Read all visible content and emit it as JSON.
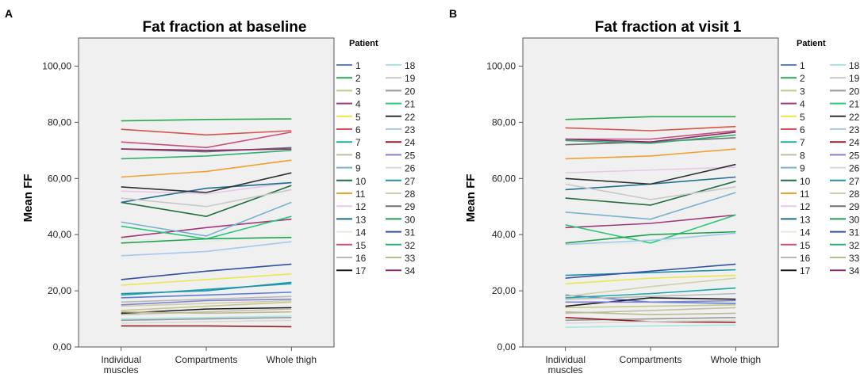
{
  "chart_data": [
    {
      "panel_label": "A",
      "type": "line",
      "title": "Fat fraction at baseline",
      "xlabel": "",
      "ylabel": "Mean FF",
      "categories": [
        "Individual muscles",
        "Compartments",
        "Whole thigh"
      ],
      "yticks": [
        "0,00",
        "20,00",
        "40,00",
        "60,00",
        "80,00",
        "100,00"
      ],
      "ylim": [
        0,
        110
      ],
      "legend_title": "Patient",
      "series": [
        {
          "name": "1",
          "color": "#5b7fd6",
          "values": [
            17.5,
            18.5,
            19.5
          ]
        },
        {
          "name": "2",
          "color": "#2aa84a",
          "values": [
            80.5,
            81.0,
            81.2
          ]
        },
        {
          "name": "3",
          "color": "#c7c78a",
          "values": [
            13.0,
            14.5,
            16.0
          ]
        },
        {
          "name": "4",
          "color": "#a0387a",
          "values": [
            39.0,
            42.5,
            45.5
          ]
        },
        {
          "name": "5",
          "color": "#e8e84a",
          "values": [
            22.0,
            24.0,
            26.0
          ]
        },
        {
          "name": "6",
          "color": "#d9534f",
          "values": [
            77.5,
            75.5,
            77.0
          ]
        },
        {
          "name": "7",
          "color": "#20a8a8",
          "values": [
            18.5,
            20.5,
            22.5
          ]
        },
        {
          "name": "8",
          "color": "#bfbfa8",
          "values": [
            11.5,
            12.5,
            13.5
          ]
        },
        {
          "name": "9",
          "color": "#78b0d0",
          "values": [
            44.5,
            39.5,
            51.5
          ]
        },
        {
          "name": "10",
          "color": "#1e6e40",
          "values": [
            51.5,
            46.5,
            57.5
          ]
        },
        {
          "name": "11",
          "color": "#f0a030",
          "values": [
            60.5,
            62.5,
            66.5
          ]
        },
        {
          "name": "12",
          "color": "#e8c8e8",
          "values": [
            55.5,
            54.5,
            58.5
          ]
        },
        {
          "name": "13",
          "color": "#1f6f8f",
          "values": [
            51.5,
            56.5,
            58.5
          ]
        },
        {
          "name": "14",
          "color": "#dff0df",
          "values": [
            38.5,
            37.5,
            40.0
          ]
        },
        {
          "name": "15",
          "color": "#c8507a",
          "values": [
            73.0,
            71.0,
            76.5
          ]
        },
        {
          "name": "16",
          "color": "#b8b8b8",
          "values": [
            16.0,
            17.0,
            18.0
          ]
        },
        {
          "name": "17",
          "color": "#1a1a1a",
          "values": [
            12.0,
            13.5,
            14.0
          ]
        },
        {
          "name": "18",
          "color": "#a8e8e0",
          "values": [
            10.0,
            10.5,
            11.0
          ]
        },
        {
          "name": "19",
          "color": "#c8c8c8",
          "values": [
            53.0,
            50.0,
            56.0
          ]
        },
        {
          "name": "20",
          "color": "#989898",
          "values": [
            9.5,
            10.0,
            10.5
          ]
        },
        {
          "name": "21",
          "color": "#2ac87a",
          "values": [
            43.0,
            38.5,
            46.5
          ]
        },
        {
          "name": "22",
          "color": "#303030",
          "values": [
            57.0,
            55.0,
            62.0
          ]
        },
        {
          "name": "23",
          "color": "#a8c8f0",
          "values": [
            32.5,
            34.0,
            37.5
          ]
        },
        {
          "name": "24",
          "color": "#902020",
          "values": [
            7.5,
            7.5,
            7.2
          ]
        },
        {
          "name": "25",
          "color": "#8080d0",
          "values": [
            15.0,
            16.5,
            17.0
          ]
        },
        {
          "name": "26",
          "color": "#d8d8d8",
          "values": [
            8.5,
            9.0,
            9.5
          ]
        },
        {
          "name": "27",
          "color": "#2090b0",
          "values": [
            19.0,
            20.0,
            23.0
          ]
        },
        {
          "name": "28",
          "color": "#d0d0a8",
          "values": [
            14.5,
            15.5,
            16.5
          ]
        },
        {
          "name": "29",
          "color": "#707070",
          "values": [
            70.5,
            69.5,
            71.0
          ]
        },
        {
          "name": "30",
          "color": "#20a050",
          "values": [
            37.0,
            38.5,
            39.0
          ]
        },
        {
          "name": "31",
          "color": "#3050a0",
          "values": [
            24.0,
            27.0,
            29.5
          ]
        },
        {
          "name": "32",
          "color": "#30b070",
          "values": [
            67.0,
            68.0,
            70.0
          ]
        },
        {
          "name": "33",
          "color": "#c0b890",
          "values": [
            12.5,
            12.0,
            12.5
          ]
        },
        {
          "name": "34",
          "color": "#8a2a6a",
          "values": [
            70.5,
            70.0,
            70.5
          ]
        }
      ]
    },
    {
      "panel_label": "B",
      "type": "line",
      "title": "Fat fraction at visit 1",
      "xlabel": "",
      "ylabel": "Mean FF",
      "categories": [
        "Individual muscles",
        "Compartments",
        "Whole thigh"
      ],
      "yticks": [
        "0,00",
        "20,00",
        "40,00",
        "60,00",
        "80,00",
        "100,00"
      ],
      "ylim": [
        0,
        110
      ],
      "legend_title": "Patient",
      "series": [
        {
          "name": "1",
          "color": "#5b7fd6",
          "values": [
            18.5,
            16.0,
            15.5
          ]
        },
        {
          "name": "2",
          "color": "#2aa84a",
          "values": [
            81.0,
            82.0,
            82.0
          ]
        },
        {
          "name": "3",
          "color": "#c7c78a",
          "values": [
            14.0,
            14.5,
            15.0
          ]
        },
        {
          "name": "4",
          "color": "#a0387a",
          "values": [
            42.5,
            44.0,
            47.0
          ]
        },
        {
          "name": "5",
          "color": "#e8e84a",
          "values": [
            22.5,
            24.5,
            25.5
          ]
        },
        {
          "name": "6",
          "color": "#d9534f",
          "values": [
            78.0,
            77.0,
            78.5
          ]
        },
        {
          "name": "7",
          "color": "#20a8a8",
          "values": [
            17.5,
            19.0,
            21.0
          ]
        },
        {
          "name": "8",
          "color": "#bfbfa8",
          "values": [
            12.0,
            13.0,
            14.0
          ]
        },
        {
          "name": "9",
          "color": "#78b0d0",
          "values": [
            48.0,
            45.5,
            55.0
          ]
        },
        {
          "name": "10",
          "color": "#1e6e40",
          "values": [
            53.0,
            50.5,
            59.0
          ]
        },
        {
          "name": "11",
          "color": "#f0a030",
          "values": [
            67.0,
            68.0,
            70.5
          ]
        },
        {
          "name": "12",
          "color": "#e8c8e8",
          "values": [
            62.0,
            63.0,
            64.0
          ]
        },
        {
          "name": "13",
          "color": "#1f6f8f",
          "values": [
            56.0,
            58.0,
            60.5
          ]
        },
        {
          "name": "14",
          "color": "#dff0df",
          "values": [
            36.5,
            37.0,
            41.0
          ]
        },
        {
          "name": "15",
          "color": "#c8507a",
          "values": [
            74.0,
            74.0,
            77.0
          ]
        },
        {
          "name": "16",
          "color": "#b8b8b8",
          "values": [
            17.0,
            18.0,
            19.0
          ]
        },
        {
          "name": "17",
          "color": "#1a1a1a",
          "values": [
            14.5,
            17.5,
            17.0
          ]
        },
        {
          "name": "18",
          "color": "#a8e8e0",
          "values": [
            7.0,
            7.5,
            7.8
          ]
        },
        {
          "name": "19",
          "color": "#c8c8c8",
          "values": [
            58.0,
            52.5,
            57.0
          ]
        },
        {
          "name": "20",
          "color": "#989898",
          "values": [
            9.5,
            10.0,
            10.5
          ]
        },
        {
          "name": "21",
          "color": "#2ac87a",
          "values": [
            43.5,
            37.0,
            47.0
          ]
        },
        {
          "name": "22",
          "color": "#303030",
          "values": [
            60.0,
            58.0,
            65.0
          ]
        },
        {
          "name": "23",
          "color": "#a8c8f0",
          "values": [
            36.5,
            38.0,
            40.5
          ]
        },
        {
          "name": "24",
          "color": "#902020",
          "values": [
            10.5,
            9.0,
            8.8
          ]
        },
        {
          "name": "25",
          "color": "#8080d0",
          "values": [
            16.0,
            16.0,
            16.5
          ]
        },
        {
          "name": "26",
          "color": "#d8d8d8",
          "values": [
            8.5,
            9.0,
            9.5
          ]
        },
        {
          "name": "27",
          "color": "#2090b0",
          "values": [
            25.5,
            26.5,
            27.5
          ]
        },
        {
          "name": "28",
          "color": "#d0d0a8",
          "values": [
            18.0,
            21.5,
            24.5
          ]
        },
        {
          "name": "29",
          "color": "#707070",
          "values": [
            72.0,
            73.0,
            74.5
          ]
        },
        {
          "name": "30",
          "color": "#20a050",
          "values": [
            37.0,
            40.0,
            41.0
          ]
        },
        {
          "name": "31",
          "color": "#3050a0",
          "values": [
            24.5,
            27.0,
            29.5
          ]
        },
        {
          "name": "32",
          "color": "#30b070",
          "values": [
            73.5,
            72.5,
            75.5
          ]
        },
        {
          "name": "33",
          "color": "#c0b890",
          "values": [
            12.5,
            11.5,
            12.0
          ]
        },
        {
          "name": "34",
          "color": "#8a2a6a",
          "values": [
            74.0,
            73.0,
            76.5
          ]
        }
      ]
    }
  ]
}
